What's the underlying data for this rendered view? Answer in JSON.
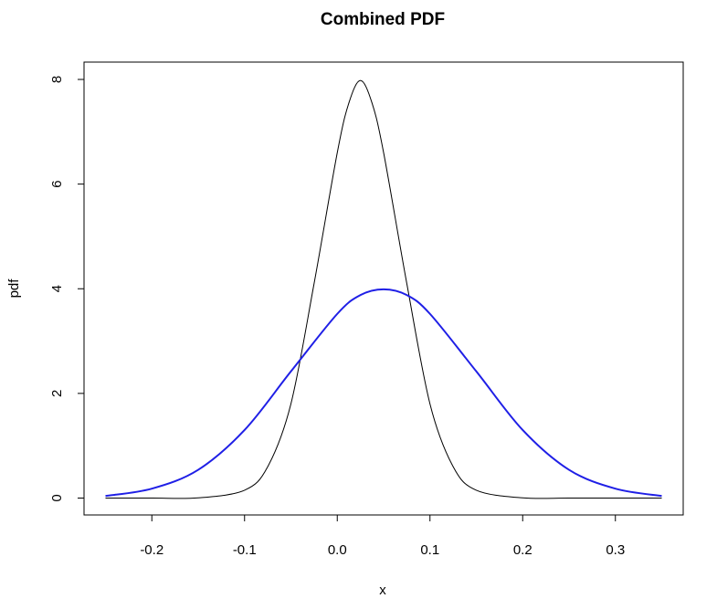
{
  "chart_data": {
    "type": "line",
    "title": "Combined PDF",
    "xlabel": "x",
    "ylabel": "pdf",
    "xlim": [
      -0.25,
      0.35
    ],
    "ylim": [
      0,
      8
    ],
    "x_ticks": [
      -0.2,
      -0.1,
      0.0,
      0.1,
      0.2,
      0.3
    ],
    "x_tick_labels": [
      "-0.2",
      "-0.1",
      "0.0",
      "0.1",
      "0.2",
      "0.3"
    ],
    "y_ticks": [
      0,
      2,
      4,
      6,
      8
    ],
    "y_tick_labels": [
      "0",
      "2",
      "4",
      "6",
      "8"
    ],
    "grid": false,
    "series": [
      {
        "color": "#000000",
        "line_width": 1,
        "x": [
          -0.25,
          -0.2,
          -0.15,
          -0.1,
          -0.075,
          -0.05,
          -0.025,
          0.0,
          0.0125,
          0.025,
          0.0375,
          0.05,
          0.075,
          0.1,
          0.125,
          0.15,
          0.2,
          0.25,
          0.3,
          0.35
        ],
        "values": [
          0.0,
          0.0,
          0.004,
          0.15,
          0.6,
          1.8,
          4.1,
          6.6,
          7.55,
          7.98,
          7.55,
          6.6,
          4.1,
          1.8,
          0.6,
          0.15,
          0.004,
          0.0,
          0.0,
          0.0
        ]
      },
      {
        "color": "#1f1fe6",
        "line_width": 2,
        "x": [
          -0.25,
          -0.2,
          -0.15,
          -0.1,
          -0.05,
          0.0,
          0.025,
          0.05,
          0.075,
          0.1,
          0.15,
          0.2,
          0.25,
          0.3,
          0.35
        ],
        "values": [
          0.04,
          0.18,
          0.54,
          1.3,
          2.42,
          3.52,
          3.88,
          3.99,
          3.88,
          3.52,
          2.42,
          1.3,
          0.54,
          0.18,
          0.04
        ]
      }
    ]
  }
}
